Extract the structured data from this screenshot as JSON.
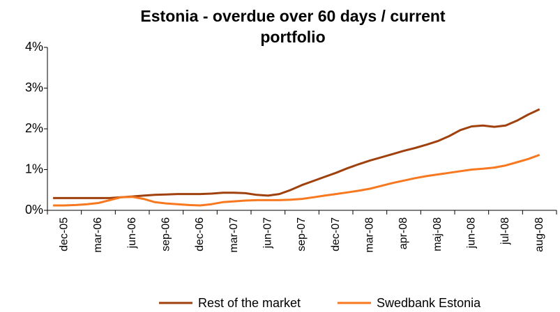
{
  "chart_data": {
    "type": "line",
    "title": "Estonia - overdue over 60 days / current portfolio",
    "categories": [
      null,
      "dec-05",
      null,
      null,
      "mar-06",
      null,
      null,
      "jun-06",
      null,
      null,
      "sep-06",
      null,
      null,
      "dec-06",
      null,
      null,
      "mar-07",
      null,
      null,
      "jun-07",
      null,
      null,
      "sep-07",
      null,
      null,
      "dec-07",
      null,
      null,
      "mar-08",
      null,
      null,
      "apr-08",
      null,
      null,
      "maj-08",
      null,
      null,
      "jun-08",
      null,
      null,
      "jul-08",
      null,
      null,
      "aug-08"
    ],
    "series": [
      {
        "name": "Rest of the market",
        "color": "#a0410d",
        "values": [
          0.3,
          0.3,
          0.3,
          0.3,
          0.3,
          0.3,
          0.32,
          0.34,
          0.36,
          0.38,
          0.39,
          0.4,
          0.4,
          0.4,
          0.41,
          0.43,
          0.43,
          0.42,
          0.38,
          0.36,
          0.4,
          0.5,
          0.62,
          0.72,
          0.82,
          0.92,
          1.03,
          1.13,
          1.22,
          1.3,
          1.38,
          1.46,
          1.53,
          1.61,
          1.7,
          1.82,
          1.97,
          2.06,
          2.08,
          2.05,
          2.08,
          2.2,
          2.35,
          2.48
        ]
      },
      {
        "name": "Swedbank Estonia",
        "color": "#f7781e",
        "values": [
          0.12,
          0.12,
          0.13,
          0.15,
          0.18,
          0.25,
          0.32,
          0.33,
          0.28,
          0.2,
          0.17,
          0.15,
          0.13,
          0.12,
          0.15,
          0.2,
          0.22,
          0.24,
          0.25,
          0.25,
          0.25,
          0.26,
          0.28,
          0.32,
          0.36,
          0.4,
          0.44,
          0.48,
          0.53,
          0.6,
          0.67,
          0.73,
          0.79,
          0.84,
          0.88,
          0.92,
          0.96,
          1.0,
          1.02,
          1.05,
          1.1,
          1.18,
          1.26,
          1.36
        ]
      }
    ],
    "ylim": [
      0,
      4
    ],
    "yticks": [
      {
        "value": 0,
        "label": "0%"
      },
      {
        "value": 1,
        "label": "1%"
      },
      {
        "value": 2,
        "label": "2%"
      },
      {
        "value": 3,
        "label": "3%"
      },
      {
        "value": 4,
        "label": "4%"
      }
    ],
    "grid": false,
    "legend": "bottom"
  }
}
